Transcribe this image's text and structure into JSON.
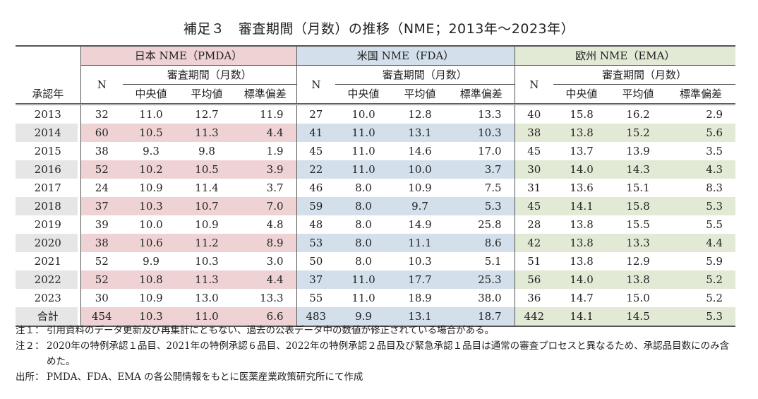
{
  "title": "補足３　審査期間（月数）の推移（NME；2013年〜2023年）",
  "table": {
    "year_header": "承認年",
    "groups": [
      {
        "label": "日本 NME（PMDA）",
        "color": "#efd3d4"
      },
      {
        "label": "米国 NME（FDA）",
        "color": "#d3dfea"
      },
      {
        "label": "欧州 NME（EMA）",
        "color": "#e2ead6"
      }
    ],
    "n_label": "N",
    "period_label": "審査期間（月数）",
    "stat_labels": [
      "中央値",
      "平均値",
      "標準偏差"
    ],
    "rows": [
      {
        "year": "2013",
        "pmda": [
          "32",
          "11.0",
          "12.7",
          "11.9"
        ],
        "fda": [
          "27",
          "10.0",
          "12.8",
          "13.3"
        ],
        "ema": [
          "40",
          "15.8",
          "16.2",
          "2.9"
        ]
      },
      {
        "year": "2014",
        "pmda": [
          "60",
          "10.5",
          "11.3",
          "4.4"
        ],
        "fda": [
          "41",
          "11.0",
          "13.1",
          "10.3"
        ],
        "ema": [
          "38",
          "13.8",
          "15.2",
          "5.6"
        ]
      },
      {
        "year": "2015",
        "pmda": [
          "38",
          "9.3",
          "9.8",
          "1.9"
        ],
        "fda": [
          "45",
          "11.0",
          "14.6",
          "17.0"
        ],
        "ema": [
          "45",
          "13.7",
          "13.9",
          "3.5"
        ]
      },
      {
        "year": "2016",
        "pmda": [
          "52",
          "10.2",
          "10.5",
          "3.9"
        ],
        "fda": [
          "22",
          "11.0",
          "10.0",
          "3.7"
        ],
        "ema": [
          "30",
          "14.0",
          "14.3",
          "4.3"
        ]
      },
      {
        "year": "2017",
        "pmda": [
          "24",
          "10.9",
          "11.4",
          "3.7"
        ],
        "fda": [
          "46",
          "8.0",
          "10.9",
          "7.5"
        ],
        "ema": [
          "31",
          "13.6",
          "15.1",
          "8.3"
        ]
      },
      {
        "year": "2018",
        "pmda": [
          "37",
          "10.3",
          "10.7",
          "7.0"
        ],
        "fda": [
          "59",
          "8.0",
          "9.7",
          "5.3"
        ],
        "ema": [
          "45",
          "14.1",
          "15.8",
          "5.3"
        ]
      },
      {
        "year": "2019",
        "pmda": [
          "39",
          "10.0",
          "10.9",
          "4.8"
        ],
        "fda": [
          "48",
          "8.0",
          "14.9",
          "25.8"
        ],
        "ema": [
          "28",
          "13.8",
          "15.5",
          "5.5"
        ]
      },
      {
        "year": "2020",
        "pmda": [
          "38",
          "10.6",
          "11.2",
          "8.9"
        ],
        "fda": [
          "53",
          "8.0",
          "11.1",
          "8.6"
        ],
        "ema": [
          "42",
          "13.8",
          "13.3",
          "4.4"
        ]
      },
      {
        "year": "2021",
        "pmda": [
          "52",
          "9.9",
          "10.3",
          "3.0"
        ],
        "fda": [
          "50",
          "8.0",
          "10.3",
          "5.1"
        ],
        "ema": [
          "51",
          "13.8",
          "12.9",
          "5.9"
        ]
      },
      {
        "year": "2022",
        "pmda": [
          "52",
          "10.8",
          "11.3",
          "4.4"
        ],
        "fda": [
          "37",
          "11.0",
          "17.7",
          "25.3"
        ],
        "ema": [
          "56",
          "14.0",
          "13.8",
          "5.2"
        ]
      },
      {
        "year": "2023",
        "pmda": [
          "30",
          "10.9",
          "13.0",
          "13.3"
        ],
        "fda": [
          "55",
          "11.0",
          "18.9",
          "38.0"
        ],
        "ema": [
          "36",
          "14.7",
          "15.0",
          "5.2"
        ]
      },
      {
        "year": "合計",
        "pmda": [
          "454",
          "10.3",
          "11.0",
          "6.6"
        ],
        "fda": [
          "483",
          "9.9",
          "13.1",
          "18.7"
        ],
        "ema": [
          "442",
          "14.1",
          "14.5",
          "5.3"
        ]
      }
    ]
  },
  "notes": [
    {
      "label": "注１：",
      "text": "引用資料のデータ更新及び再集計にともない、過去の公表データ中の数値が修正されている場合がある。"
    },
    {
      "label": "注２：",
      "text": "2020年の特例承認１品目、2021年の特例承認６品目、2022年の特例承認２品目及び緊急承認１品目は通常の審査プロセスと異なるため、承認品目数にのみ含めた。"
    },
    {
      "label": "出所：",
      "text": "PMDA、FDA、EMA の各公開情報をもとに医薬産業政策研究所にて作成"
    }
  ]
}
